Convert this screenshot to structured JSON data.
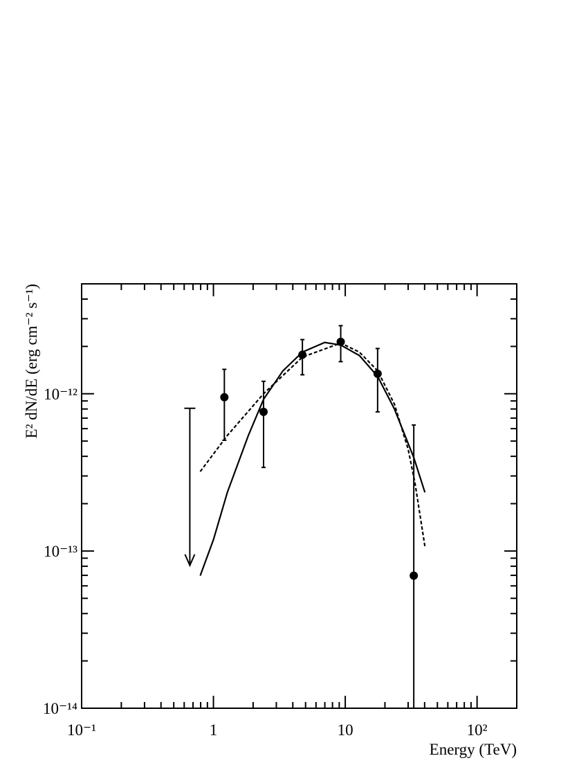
{
  "chart_data": {
    "type": "sed",
    "xlabel": "Energy (TeV)",
    "ylabel": "E² dN/dE (erg cm⁻² s⁻¹)",
    "log_x": true,
    "log_y": true,
    "xlim": [
      0.1,
      200
    ],
    "ylim": [
      1e-14,
      5e-12
    ],
    "xticks": [
      {
        "value": 0.1,
        "label": "10⁻¹"
      },
      1,
      10,
      {
        "value": 100,
        "label": "10²"
      }
    ],
    "yticks": [
      {
        "value": 1e-14,
        "label": "10⁻¹⁴"
      },
      {
        "value": 1e-13,
        "label": "10⁻¹³"
      },
      {
        "value": 1e-12,
        "label": "10⁻¹²"
      }
    ],
    "xminor": [
      0.2,
      0.3,
      0.4,
      0.5,
      0.6,
      0.7,
      0.8,
      0.9,
      2,
      3,
      4,
      5,
      6,
      7,
      8,
      9,
      20,
      30,
      40,
      50,
      60,
      70,
      80,
      90,
      200
    ],
    "yminor": [
      2e-14,
      3e-14,
      4e-14,
      5e-14,
      6e-14,
      7e-14,
      8e-14,
      9e-14,
      2e-13,
      3e-13,
      4e-13,
      5e-13,
      6e-13,
      7e-13,
      8e-13,
      9e-13,
      2e-12,
      3e-12,
      4e-12,
      5e-12
    ],
    "color": "#000000",
    "points": {
      "x": [
        1.21,
        2.4,
        4.73,
        9.24,
        17.6,
        33.1
      ],
      "values": [
        9.5e-13,
        7.67e-13,
        1.77e-12,
        2.14e-12,
        1.34e-12,
        6.97e-14
      ],
      "lower": [
        5.06e-13,
        3.4e-13,
        1.32e-12,
        1.6e-12,
        7.67e-13,
        1e-14
      ],
      "upper": [
        1.43e-12,
        1.2e-12,
        2.21e-12,
        2.71e-12,
        1.94e-12,
        6.33e-13
      ]
    },
    "upper_limits": {
      "x": [
        0.662
      ],
      "values": [
        8.08e-13
      ]
    },
    "curves": [
      {
        "dash": false,
        "x": [
          0.794,
          1,
          1.275,
          1.84,
          2.4,
          3.37,
          4.73,
          6.99,
          9.24,
          12.8,
          17.6,
          23.6,
          33.1,
          40.2
        ],
        "values": [
          6.97e-14,
          1.18e-13,
          2.36e-13,
          5.43e-13,
          9.22e-13,
          1.4e-12,
          1.84e-12,
          2.12e-12,
          2.04e-12,
          1.75e-12,
          1.29e-12,
          8e-13,
          3.93e-13,
          2.36e-13
        ]
      },
      {
        "dash": true,
        "x": [
          0.794,
          1.275,
          2.4,
          4.73,
          9.24,
          12.8,
          17.6,
          23.6,
          30.0,
          33.9,
          40.2
        ],
        "values": [
          3.2e-13,
          5.43e-13,
          1e-12,
          1.71e-12,
          2.1e-12,
          1.84e-12,
          1.4e-12,
          8.59e-13,
          4.44e-13,
          2.67e-13,
          1.07e-13
        ]
      }
    ]
  }
}
